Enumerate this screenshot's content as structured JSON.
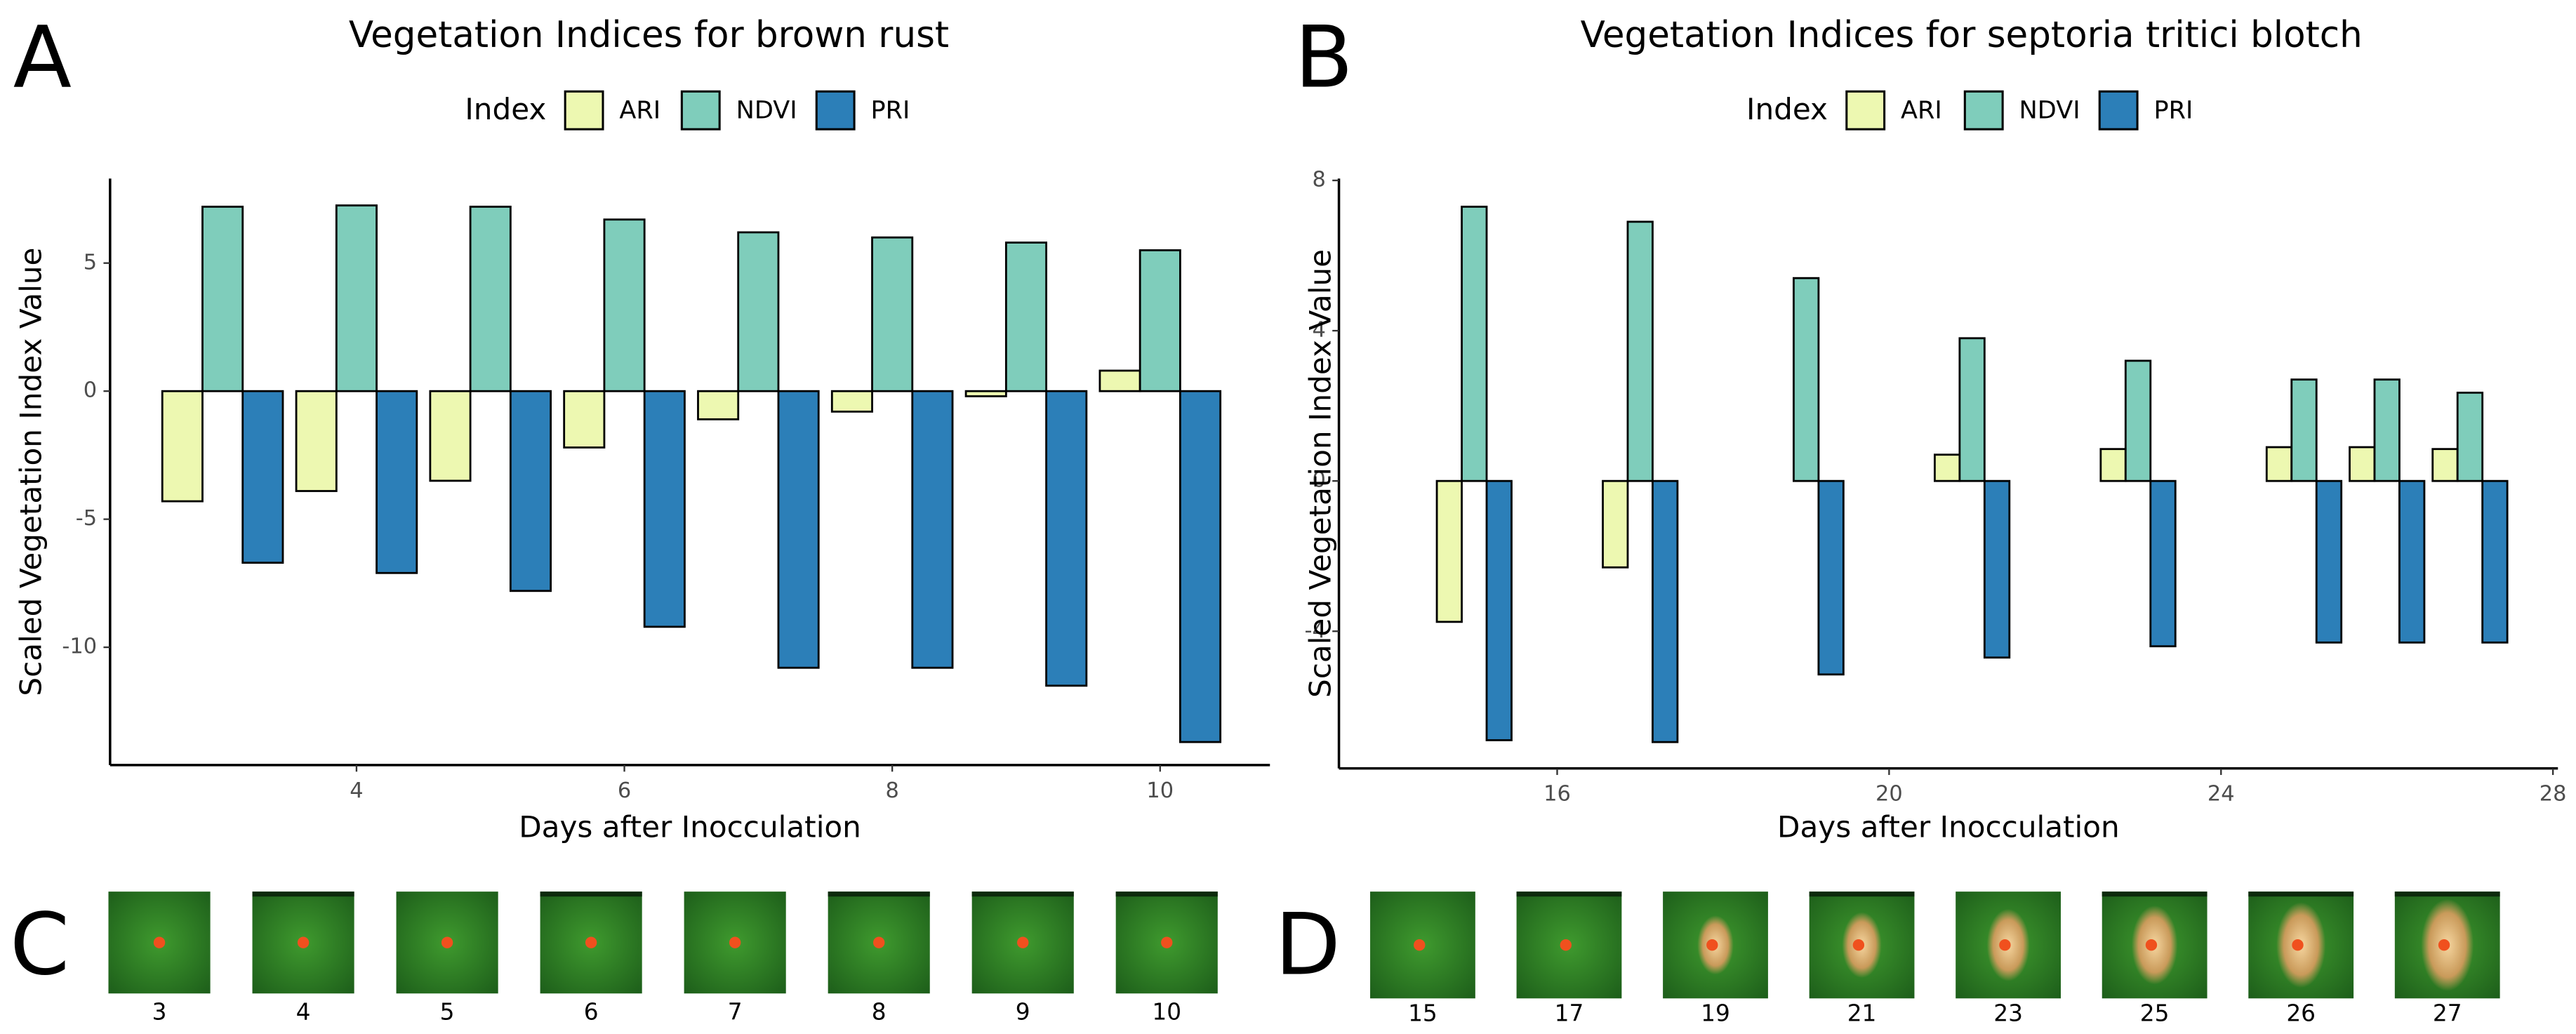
{
  "panel_labels": [
    "A",
    "B",
    "C",
    "D"
  ],
  "chart_data": [
    {
      "type": "bar",
      "title": "Vegetation Indices for brown rust",
      "legend_title": "Index",
      "x": [
        3,
        4,
        5,
        6,
        7,
        8,
        9,
        10
      ],
      "series": [
        {
          "name": "ARI",
          "color": "#edf8b1",
          "values": [
            -4.3,
            -3.9,
            -3.5,
            -2.2,
            -1.1,
            -0.8,
            -0.2,
            0.8
          ]
        },
        {
          "name": "NDVI",
          "color": "#7fcdbb",
          "values": [
            7.2,
            7.25,
            7.2,
            6.7,
            6.2,
            6.0,
            5.8,
            5.5
          ]
        },
        {
          "name": "PRI",
          "color": "#2c7fb8",
          "values": [
            -6.7,
            -7.1,
            -7.8,
            -9.2,
            -10.8,
            -10.8,
            -11.5,
            -13.7
          ]
        }
      ],
      "xlabel": "Days after Inocculation",
      "ylabel": "Scaled Vegetation Index Value",
      "xlim": [
        2.16,
        10.82
      ],
      "xticks": [
        4,
        6,
        8,
        10
      ],
      "ylim": [
        -14.6,
        8.3
      ],
      "yticks": [
        -10,
        -5,
        0,
        5
      ]
    },
    {
      "type": "bar",
      "title": "Vegetation Indices for septoria tritici blotch",
      "legend_title": "Index",
      "x": [
        15,
        17,
        19,
        21,
        23,
        25,
        26,
        27
      ],
      "series": [
        {
          "name": "ARI",
          "color": "#edf8b1",
          "values": [
            -3.75,
            -2.3,
            0,
            0.7,
            0.85,
            0.9,
            0.9,
            0.85
          ]
        },
        {
          "name": "NDVI",
          "color": "#7fcdbb",
          "values": [
            7.3,
            6.9,
            5.4,
            3.8,
            3.2,
            2.7,
            2.7,
            2.35
          ]
        },
        {
          "name": "PRI",
          "color": "#2c7fb8",
          "values": [
            -6.9,
            -6.95,
            -5.15,
            -4.7,
            -4.4,
            -4.3,
            -4.3,
            -4.3
          ]
        }
      ],
      "xlabel": "Days after Inocculation",
      "ylabel": "Scaled Vegetation Index Value",
      "xlim": [
        13.37,
        28.06
      ],
      "xticks": [
        16,
        20,
        24,
        28
      ],
      "ylim": [
        -7.65,
        8.05
      ],
      "yticks": [
        -4,
        0,
        4,
        8
      ]
    }
  ],
  "image_strips": [
    {
      "labels": [
        "3",
        "4",
        "5",
        "6",
        "7",
        "8",
        "9",
        "10"
      ]
    },
    {
      "labels": [
        "15",
        "17",
        "19",
        "21",
        "23",
        "25",
        "26",
        "27"
      ]
    }
  ]
}
